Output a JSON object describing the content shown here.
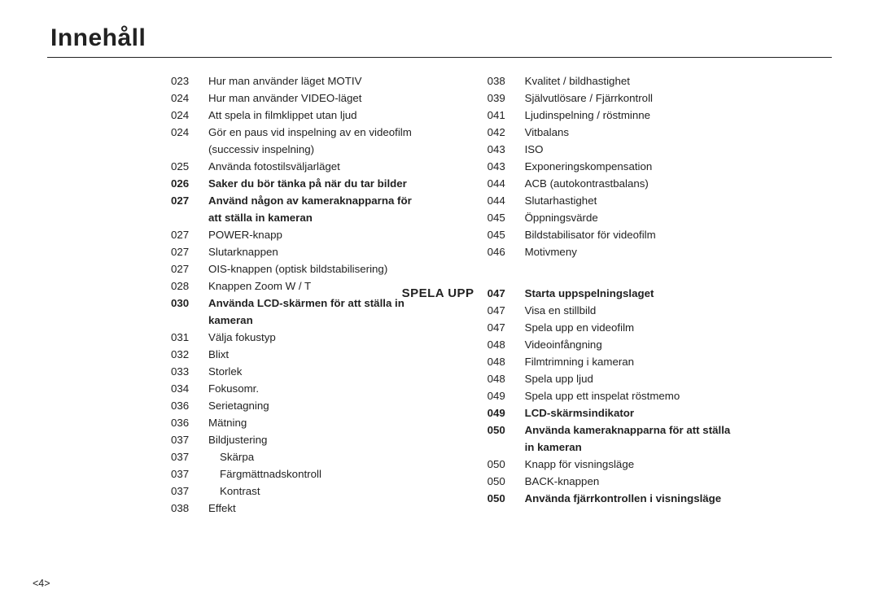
{
  "header": {
    "title": "Innehåll"
  },
  "footer": {
    "page_indicator": "<4>"
  },
  "section": {
    "label": "SPELA UPP"
  },
  "left_col": [
    {
      "pg": "023",
      "txt": "Hur man använder läget MOTIV",
      "bold": false,
      "indent": 0
    },
    {
      "pg": "024",
      "txt": "Hur man använder VIDEO-läget",
      "bold": false,
      "indent": 0
    },
    {
      "pg": "024",
      "txt": "Att spela in filmklippet utan ljud",
      "bold": false,
      "indent": 0
    },
    {
      "pg": "024",
      "txt": "Gör en paus vid inspelning av en videofilm",
      "bold": false,
      "indent": 0
    },
    {
      "pg": "",
      "txt": "(successiv inspelning)",
      "bold": false,
      "indent": 0
    },
    {
      "pg": "025",
      "txt": "Använda fotostilsväljarläget",
      "bold": false,
      "indent": 0
    },
    {
      "pg": "026",
      "txt": "Saker du bör tänka på när du tar bilder",
      "bold": true,
      "indent": 0
    },
    {
      "pg": "027",
      "txt": "Använd någon av kameraknapparna för",
      "bold": true,
      "indent": 0
    },
    {
      "pg": "",
      "txt": "att ställa in kameran",
      "bold": true,
      "indent": 0
    },
    {
      "pg": "027",
      "txt": "POWER-knapp",
      "bold": false,
      "indent": 0
    },
    {
      "pg": "027",
      "txt": "Slutarknappen",
      "bold": false,
      "indent": 0
    },
    {
      "pg": "027",
      "txt": "OIS-knappen (optisk bildstabilisering)",
      "bold": false,
      "indent": 0
    },
    {
      "pg": "028",
      "txt": "Knappen Zoom W / T",
      "bold": false,
      "indent": 0
    },
    {
      "pg": "030",
      "txt": "Använda LCD-skärmen för att ställa in",
      "bold": true,
      "indent": 0
    },
    {
      "pg": "",
      "txt": "kameran",
      "bold": true,
      "indent": 0
    },
    {
      "pg": "031",
      "txt": "Välja fokustyp",
      "bold": false,
      "indent": 0
    },
    {
      "pg": "032",
      "txt": "Blixt",
      "bold": false,
      "indent": 0
    },
    {
      "pg": "033",
      "txt": "Storlek",
      "bold": false,
      "indent": 0
    },
    {
      "pg": "034",
      "txt": "Fokusomr.",
      "bold": false,
      "indent": 0
    },
    {
      "pg": "036",
      "txt": "Serietagning",
      "bold": false,
      "indent": 0
    },
    {
      "pg": "036",
      "txt": "Mätning",
      "bold": false,
      "indent": 0
    },
    {
      "pg": "037",
      "txt": "Bildjustering",
      "bold": false,
      "indent": 0
    },
    {
      "pg": "037",
      "txt": "Skärpa",
      "bold": false,
      "indent": 1
    },
    {
      "pg": "037",
      "txt": "Färgmättnadskontroll",
      "bold": false,
      "indent": 1
    },
    {
      "pg": "037",
      "txt": "Kontrast",
      "bold": false,
      "indent": 1
    },
    {
      "pg": "038",
      "txt": "Effekt",
      "bold": false,
      "indent": 0
    }
  ],
  "right_col_top": [
    {
      "pg": "038",
      "txt": "Kvalitet / bildhastighet",
      "bold": false,
      "indent": 0
    },
    {
      "pg": "039",
      "txt": "Självutlösare / Fjärrkontroll",
      "bold": false,
      "indent": 0
    },
    {
      "pg": "041",
      "txt": "Ljudinspelning / röstminne",
      "bold": false,
      "indent": 0
    },
    {
      "pg": "042",
      "txt": "Vitbalans",
      "bold": false,
      "indent": 0
    },
    {
      "pg": "043",
      "txt": "ISO",
      "bold": false,
      "indent": 0
    },
    {
      "pg": "043",
      "txt": "Exponeringskompensation",
      "bold": false,
      "indent": 0
    },
    {
      "pg": "044",
      "txt": "ACB (autokontrastbalans)",
      "bold": false,
      "indent": 0
    },
    {
      "pg": "044",
      "txt": "Slutarhastighet",
      "bold": false,
      "indent": 0
    },
    {
      "pg": "045",
      "txt": "Öppningsvärde",
      "bold": false,
      "indent": 0
    },
    {
      "pg": "045",
      "txt": "Bildstabilisator för videofilm",
      "bold": false,
      "indent": 0
    },
    {
      "pg": "046",
      "txt": "Motivmeny",
      "bold": false,
      "indent": 0
    }
  ],
  "right_col_bottom": [
    {
      "pg": "047",
      "txt": "Starta uppspelningslaget",
      "bold": true,
      "indent": 0
    },
    {
      "pg": "047",
      "txt": "Visa en stillbild",
      "bold": false,
      "indent": 0
    },
    {
      "pg": "047",
      "txt": "Spela upp en videofilm",
      "bold": false,
      "indent": 0
    },
    {
      "pg": "048",
      "txt": "Videoinfångning",
      "bold": false,
      "indent": 0
    },
    {
      "pg": "048",
      "txt": "Filmtrimning i kameran",
      "bold": false,
      "indent": 0
    },
    {
      "pg": "048",
      "txt": "Spela upp ljud",
      "bold": false,
      "indent": 0
    },
    {
      "pg": "049",
      "txt": "Spela upp ett inspelat röstmemo",
      "bold": false,
      "indent": 0
    },
    {
      "pg": "049",
      "txt": "LCD-skärmsindikator",
      "bold": true,
      "indent": 0
    },
    {
      "pg": "050",
      "txt": "Använda kameraknapparna för att ställa",
      "bold": true,
      "indent": 0
    },
    {
      "pg": "",
      "txt": "in kameran",
      "bold": true,
      "indent": 0
    },
    {
      "pg": "050",
      "txt": "Knapp för visningsläge",
      "bold": false,
      "indent": 0
    },
    {
      "pg": "050",
      "txt": "BACK-knappen",
      "bold": false,
      "indent": 0
    },
    {
      "pg": "050",
      "txt": "Använda fjärrkontrollen i visningsläge",
      "bold": true,
      "indent": 0
    }
  ]
}
